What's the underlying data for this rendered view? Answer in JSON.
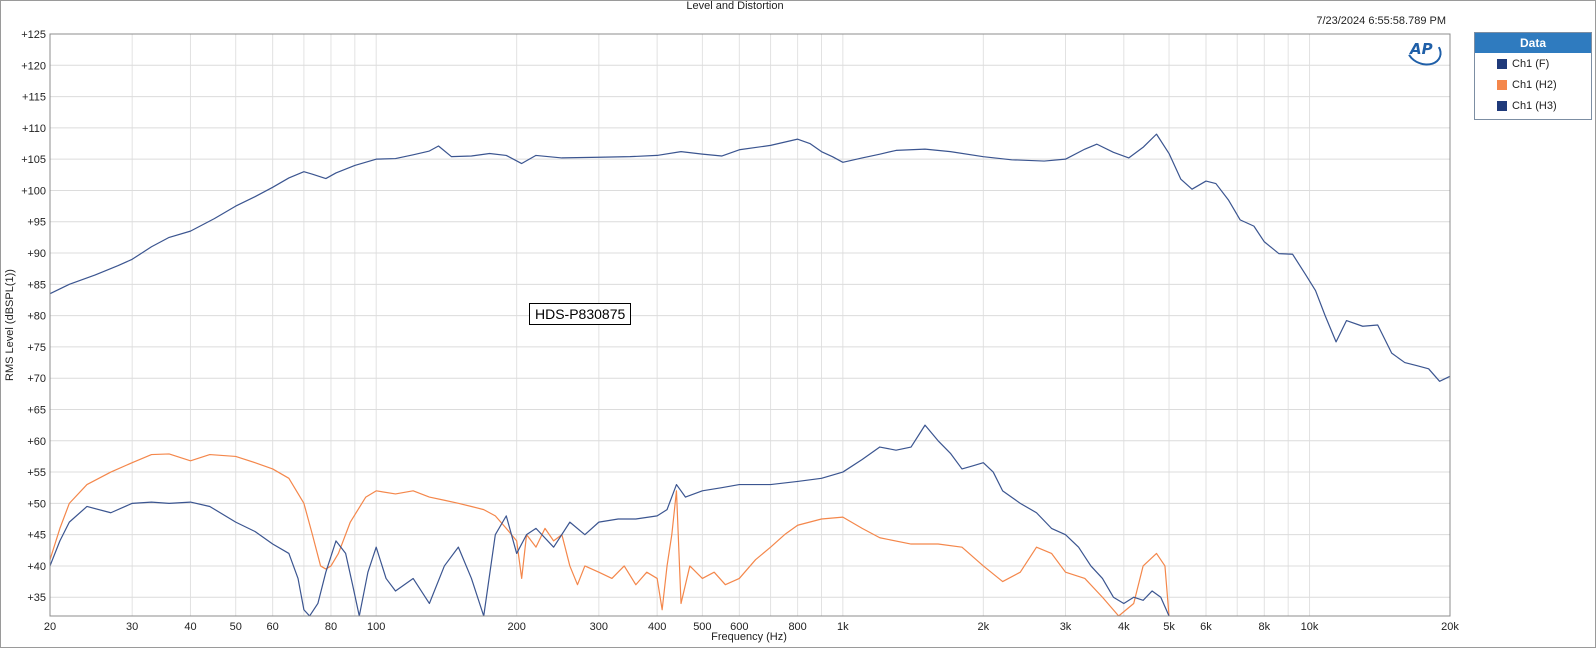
{
  "window": {
    "title": "Level and Distortion",
    "timestamp": "7/23/2024 6:55:58.789 PM",
    "logo_text": "AP",
    "annotation": "HDS-P830875"
  },
  "legend": {
    "header": "Data",
    "items": [
      {
        "label": "Ch1 (F)",
        "color": "#1f3a7a"
      },
      {
        "label": "Ch1 (H2)",
        "color": "#f4874b"
      },
      {
        "label": "Ch1 (H3)",
        "color": "#1f3a7a"
      }
    ]
  },
  "chart_data": {
    "type": "line",
    "title": "Level and Distortion",
    "xlabel": "Frequency (Hz)",
    "ylabel": "RMS Level (dBSPL(1))",
    "xscale": "log",
    "xlim": [
      20,
      20000
    ],
    "ylim": [
      32,
      125
    ],
    "grid": true,
    "legend_position": "right-outside",
    "x_ticks": [
      {
        "value": 20,
        "label": "20"
      },
      {
        "value": 30,
        "label": "30"
      },
      {
        "value": 40,
        "label": "40"
      },
      {
        "value": 50,
        "label": "50"
      },
      {
        "value": 60,
        "label": "60"
      },
      {
        "value": 80,
        "label": "80"
      },
      {
        "value": 100,
        "label": "100"
      },
      {
        "value": 200,
        "label": "200"
      },
      {
        "value": 300,
        "label": "300"
      },
      {
        "value": 400,
        "label": "400"
      },
      {
        "value": 500,
        "label": "500"
      },
      {
        "value": 600,
        "label": "600"
      },
      {
        "value": 800,
        "label": "800"
      },
      {
        "value": 1000,
        "label": "1k"
      },
      {
        "value": 2000,
        "label": "2k"
      },
      {
        "value": 3000,
        "label": "3k"
      },
      {
        "value": 4000,
        "label": "4k"
      },
      {
        "value": 5000,
        "label": "5k"
      },
      {
        "value": 6000,
        "label": "6k"
      },
      {
        "value": 8000,
        "label": "8k"
      },
      {
        "value": 10000,
        "label": "10k"
      },
      {
        "value": 20000,
        "label": "20k"
      }
    ],
    "y_ticks": [
      {
        "value": 125,
        "label": "+125"
      },
      {
        "value": 120,
        "label": "+120"
      },
      {
        "value": 115,
        "label": "+115"
      },
      {
        "value": 110,
        "label": "+110"
      },
      {
        "value": 105,
        "label": "+105"
      },
      {
        "value": 100,
        "label": "+100"
      },
      {
        "value": 95,
        "label": "+95"
      },
      {
        "value": 90,
        "label": "+90"
      },
      {
        "value": 85,
        "label": "+85"
      },
      {
        "value": 80,
        "label": "+80"
      },
      {
        "value": 75,
        "label": "+75"
      },
      {
        "value": 70,
        "label": "+70"
      },
      {
        "value": 65,
        "label": "+65"
      },
      {
        "value": 60,
        "label": "+60"
      },
      {
        "value": 55,
        "label": "+55"
      },
      {
        "value": 50,
        "label": "+50"
      },
      {
        "value": 45,
        "label": "+45"
      },
      {
        "value": 40,
        "label": "+40"
      },
      {
        "value": 35,
        "label": "+35"
      }
    ],
    "series": [
      {
        "name": "Ch1 (F)",
        "color": "#3b5590",
        "points": [
          [
            20,
            83.5
          ],
          [
            22,
            85
          ],
          [
            25,
            86.5
          ],
          [
            28,
            88
          ],
          [
            30,
            89
          ],
          [
            33,
            91
          ],
          [
            36,
            92.5
          ],
          [
            40,
            93.5
          ],
          [
            45,
            95.5
          ],
          [
            50,
            97.5
          ],
          [
            55,
            99
          ],
          [
            60,
            100.5
          ],
          [
            65,
            102
          ],
          [
            70,
            103
          ],
          [
            73,
            102.6
          ],
          [
            78,
            101.9
          ],
          [
            82,
            102.8
          ],
          [
            90,
            104
          ],
          [
            100,
            105
          ],
          [
            110,
            105.1
          ],
          [
            120,
            105.7
          ],
          [
            130,
            106.3
          ],
          [
            136,
            107.1
          ],
          [
            145,
            105.4
          ],
          [
            160,
            105.5
          ],
          [
            175,
            105.9
          ],
          [
            190,
            105.6
          ],
          [
            205,
            104.3
          ],
          [
            220,
            105.6
          ],
          [
            250,
            105.2
          ],
          [
            300,
            105.3
          ],
          [
            350,
            105.4
          ],
          [
            400,
            105.6
          ],
          [
            450,
            106.2
          ],
          [
            500,
            105.8
          ],
          [
            550,
            105.5
          ],
          [
            600,
            106.5
          ],
          [
            700,
            107.2
          ],
          [
            800,
            108.2
          ],
          [
            850,
            107.5
          ],
          [
            900,
            106.2
          ],
          [
            950,
            105.4
          ],
          [
            1000,
            104.5
          ],
          [
            1100,
            105.2
          ],
          [
            1200,
            105.8
          ],
          [
            1300,
            106.4
          ],
          [
            1500,
            106.6
          ],
          [
            1700,
            106.2
          ],
          [
            2000,
            105.4
          ],
          [
            2300,
            104.9
          ],
          [
            2700,
            104.7
          ],
          [
            3000,
            105.0
          ],
          [
            3300,
            106.6
          ],
          [
            3500,
            107.4
          ],
          [
            3800,
            106.1
          ],
          [
            4100,
            105.2
          ],
          [
            4400,
            106.9
          ],
          [
            4700,
            109.0
          ],
          [
            5000,
            105.9
          ],
          [
            5300,
            101.8
          ],
          [
            5600,
            100.2
          ],
          [
            6000,
            101.5
          ],
          [
            6300,
            101.1
          ],
          [
            6700,
            98.5
          ],
          [
            7100,
            95.3
          ],
          [
            7600,
            94.3
          ],
          [
            8000,
            91.8
          ],
          [
            8600,
            89.9
          ],
          [
            9200,
            89.8
          ],
          [
            9800,
            86.6
          ],
          [
            10300,
            84.0
          ],
          [
            10800,
            80.0
          ],
          [
            11400,
            75.8
          ],
          [
            12000,
            79.2
          ],
          [
            13000,
            78.3
          ],
          [
            14000,
            78.5
          ],
          [
            15000,
            74.0
          ],
          [
            16000,
            72.5
          ],
          [
            17000,
            72.0
          ],
          [
            18000,
            71.5
          ],
          [
            19000,
            69.5
          ],
          [
            20000,
            70.3
          ]
        ]
      },
      {
        "name": "Ch1 (H2)",
        "color": "#f4874b",
        "points": [
          [
            20,
            41
          ],
          [
            21,
            46
          ],
          [
            22,
            50
          ],
          [
            24,
            53
          ],
          [
            27,
            55
          ],
          [
            30,
            56.5
          ],
          [
            33,
            57.8
          ],
          [
            36,
            57.9
          ],
          [
            40,
            56.8
          ],
          [
            44,
            57.8
          ],
          [
            50,
            57.5
          ],
          [
            55,
            56.5
          ],
          [
            60,
            55.5
          ],
          [
            65,
            54
          ],
          [
            70,
            50
          ],
          [
            73,
            45
          ],
          [
            76,
            40
          ],
          [
            78,
            39.5
          ],
          [
            80,
            40
          ],
          [
            83,
            42
          ],
          [
            88,
            47
          ],
          [
            95,
            51
          ],
          [
            100,
            52
          ],
          [
            110,
            51.5
          ],
          [
            120,
            52
          ],
          [
            130,
            51
          ],
          [
            140,
            50.5
          ],
          [
            150,
            50
          ],
          [
            160,
            49.5
          ],
          [
            170,
            49
          ],
          [
            180,
            48
          ],
          [
            190,
            46
          ],
          [
            200,
            44
          ],
          [
            205,
            38
          ],
          [
            210,
            45
          ],
          [
            220,
            43
          ],
          [
            230,
            46
          ],
          [
            240,
            44
          ],
          [
            250,
            45
          ],
          [
            260,
            40
          ],
          [
            270,
            37
          ],
          [
            280,
            40
          ],
          [
            300,
            39
          ],
          [
            320,
            38
          ],
          [
            340,
            40
          ],
          [
            360,
            37
          ],
          [
            380,
            39
          ],
          [
            400,
            38
          ],
          [
            410,
            33
          ],
          [
            420,
            40
          ],
          [
            430,
            45
          ],
          [
            440,
            52
          ],
          [
            450,
            34
          ],
          [
            470,
            40
          ],
          [
            500,
            38
          ],
          [
            530,
            39
          ],
          [
            560,
            37
          ],
          [
            600,
            38
          ],
          [
            650,
            41
          ],
          [
            700,
            43
          ],
          [
            750,
            45
          ],
          [
            800,
            46.5
          ],
          [
            900,
            47.5
          ],
          [
            1000,
            47.8
          ],
          [
            1100,
            46
          ],
          [
            1200,
            44.5
          ],
          [
            1400,
            43.5
          ],
          [
            1600,
            43.5
          ],
          [
            1800,
            43
          ],
          [
            2000,
            40
          ],
          [
            2200,
            37.5
          ],
          [
            2400,
            39
          ],
          [
            2600,
            43
          ],
          [
            2800,
            42
          ],
          [
            3000,
            39
          ],
          [
            3300,
            38
          ],
          [
            3600,
            35
          ],
          [
            3900,
            32
          ],
          [
            4200,
            34
          ],
          [
            4400,
            40
          ],
          [
            4700,
            42
          ],
          [
            4900,
            40
          ],
          [
            5000,
            32
          ]
        ]
      },
      {
        "name": "Ch1 (H3)",
        "color": "#3b5590",
        "points": [
          [
            20,
            40
          ],
          [
            21,
            44
          ],
          [
            22,
            47
          ],
          [
            24,
            49.5
          ],
          [
            27,
            48.5
          ],
          [
            30,
            50
          ],
          [
            33,
            50.2
          ],
          [
            36,
            50
          ],
          [
            40,
            50.2
          ],
          [
            44,
            49.5
          ],
          [
            50,
            47
          ],
          [
            55,
            45.5
          ],
          [
            60,
            43.5
          ],
          [
            65,
            42
          ],
          [
            68,
            38
          ],
          [
            70,
            33
          ],
          [
            72,
            32
          ],
          [
            75,
            34
          ],
          [
            78,
            39
          ],
          [
            82,
            44
          ],
          [
            86,
            42
          ],
          [
            89,
            37
          ],
          [
            92,
            32
          ],
          [
            96,
            39
          ],
          [
            100,
            43
          ],
          [
            105,
            38
          ],
          [
            110,
            36
          ],
          [
            120,
            38
          ],
          [
            130,
            34
          ],
          [
            140,
            40
          ],
          [
            150,
            43
          ],
          [
            160,
            38
          ],
          [
            170,
            32
          ],
          [
            180,
            45
          ],
          [
            190,
            48
          ],
          [
            200,
            42
          ],
          [
            210,
            45
          ],
          [
            220,
            46
          ],
          [
            240,
            43
          ],
          [
            260,
            47
          ],
          [
            280,
            45
          ],
          [
            300,
            47
          ],
          [
            330,
            47.5
          ],
          [
            360,
            47.5
          ],
          [
            400,
            48
          ],
          [
            420,
            49
          ],
          [
            440,
            53
          ],
          [
            460,
            51
          ],
          [
            500,
            52
          ],
          [
            550,
            52.5
          ],
          [
            600,
            53
          ],
          [
            700,
            53
          ],
          [
            800,
            53.5
          ],
          [
            900,
            54
          ],
          [
            1000,
            55
          ],
          [
            1100,
            57
          ],
          [
            1200,
            59
          ],
          [
            1300,
            58.5
          ],
          [
            1400,
            59
          ],
          [
            1500,
            62.5
          ],
          [
            1600,
            60
          ],
          [
            1700,
            58
          ],
          [
            1800,
            55.5
          ],
          [
            1900,
            56
          ],
          [
            2000,
            56.5
          ],
          [
            2100,
            55
          ],
          [
            2200,
            52
          ],
          [
            2400,
            50
          ],
          [
            2600,
            48.5
          ],
          [
            2800,
            46
          ],
          [
            3000,
            45
          ],
          [
            3200,
            43
          ],
          [
            3400,
            40
          ],
          [
            3600,
            38
          ],
          [
            3800,
            35
          ],
          [
            4000,
            34
          ],
          [
            4200,
            35
          ],
          [
            4400,
            34.5
          ],
          [
            4600,
            36
          ],
          [
            4800,
            35
          ],
          [
            5000,
            32
          ]
        ]
      }
    ]
  }
}
